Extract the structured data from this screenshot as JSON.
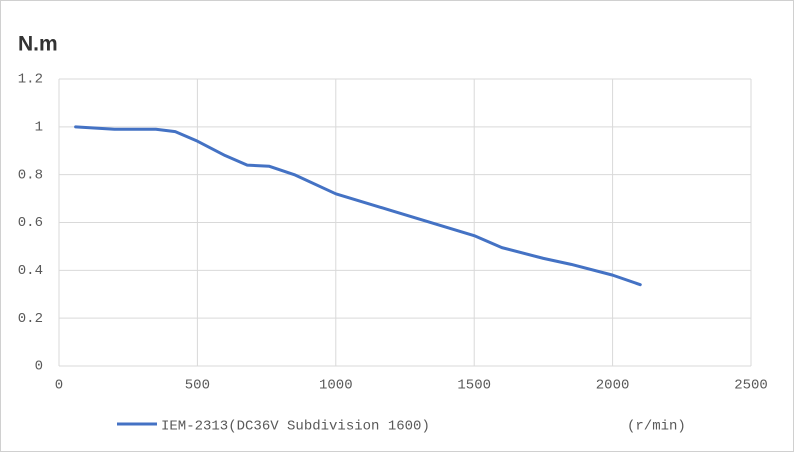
{
  "chart_data": {
    "type": "line",
    "y_label": "N.m",
    "x_label": "(r/min)",
    "x": [
      60,
      200,
      350,
      420,
      500,
      600,
      680,
      760,
      850,
      1000,
      1200,
      1400,
      1500,
      1600,
      1750,
      1850,
      2000,
      2100
    ],
    "series": [
      {
        "name": "IEM-2313(DC36V Subdivision 1600)",
        "color": "#4472c4",
        "values": [
          1.0,
          0.99,
          0.99,
          0.98,
          0.94,
          0.88,
          0.84,
          0.835,
          0.8,
          0.72,
          0.65,
          0.58,
          0.545,
          0.495,
          0.45,
          0.425,
          0.38,
          0.34
        ]
      }
    ],
    "xlim": [
      0,
      2500
    ],
    "xticks": [
      0,
      500,
      1000,
      1500,
      2000,
      2500
    ],
    "ylim": [
      0,
      1.2
    ],
    "yticks": [
      0,
      0.2,
      0.4,
      0.6,
      0.8,
      1,
      1.2
    ],
    "grid": true
  }
}
